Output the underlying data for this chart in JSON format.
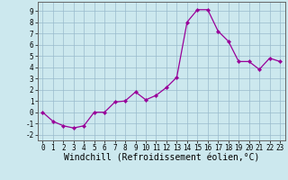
{
  "x": [
    0,
    1,
    2,
    3,
    4,
    5,
    6,
    7,
    8,
    9,
    10,
    11,
    12,
    13,
    14,
    15,
    16,
    17,
    18,
    19,
    20,
    21,
    22,
    23
  ],
  "y": [
    0.0,
    -0.8,
    -1.2,
    -1.4,
    -1.2,
    0.0,
    0.0,
    0.9,
    1.0,
    1.8,
    1.1,
    1.5,
    2.2,
    3.1,
    8.0,
    9.1,
    9.1,
    7.2,
    6.3,
    4.5,
    4.5,
    3.8,
    4.8,
    4.5
  ],
  "line_color": "#990099",
  "marker": "D",
  "marker_size": 2.2,
  "bg_color": "#cce8ee",
  "grid_color": "#99bbcc",
  "xlabel": "Windchill (Refroidissement éolien,°C)",
  "ylabel_ticks": [
    "-2",
    "-1",
    "0",
    "1",
    "2",
    "3",
    "4",
    "5",
    "6",
    "7",
    "8",
    "9"
  ],
  "yticks": [
    -2,
    -1,
    0,
    1,
    2,
    3,
    4,
    5,
    6,
    7,
    8,
    9
  ],
  "ylim": [
    -2.5,
    9.8
  ],
  "xlim": [
    -0.5,
    23.5
  ],
  "xticks": [
    0,
    1,
    2,
    3,
    4,
    5,
    6,
    7,
    8,
    9,
    10,
    11,
    12,
    13,
    14,
    15,
    16,
    17,
    18,
    19,
    20,
    21,
    22,
    23
  ],
  "tick_fontsize": 5.5,
  "xlabel_fontsize": 7.0
}
